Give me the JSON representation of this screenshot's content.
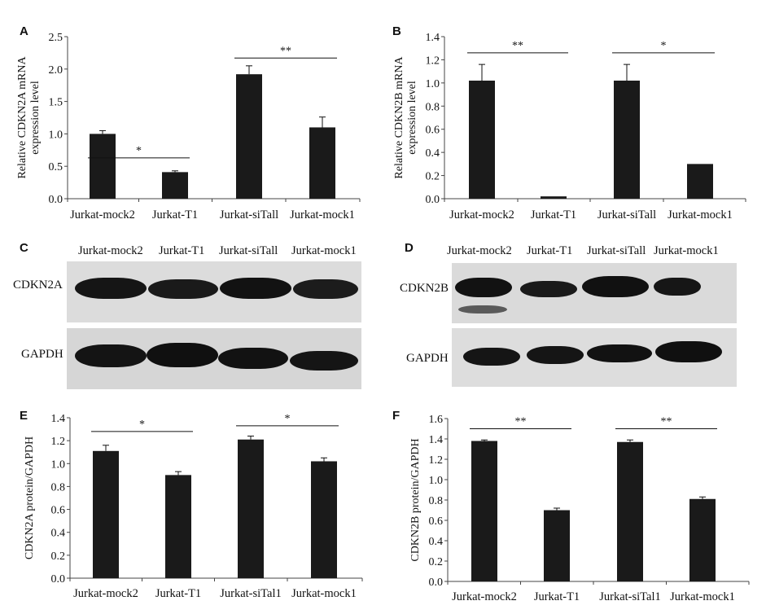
{
  "panels": {
    "A": {
      "letter": "A"
    },
    "B": {
      "letter": "B"
    },
    "C": {
      "letter": "C"
    },
    "D": {
      "letter": "D"
    },
    "E": {
      "letter": "E"
    },
    "F": {
      "letter": "F"
    }
  },
  "chart_data": [
    {
      "id": "A",
      "type": "bar",
      "categories": [
        "Jurkat-mock2",
        "Jurkat-T1",
        "Jurkat-siTall",
        "Jurkat-mock1"
      ],
      "values": [
        1.0,
        0.41,
        1.92,
        1.1
      ],
      "errors": [
        0.05,
        0.02,
        0.13,
        0.16
      ],
      "ylabel": "Relative CDKN2A mRNA expression level",
      "ylim": [
        0,
        2.5
      ],
      "yticks": [
        "0.0",
        "0.5",
        "1.0",
        "1.5",
        "2.0",
        "2.5"
      ],
      "significance": [
        {
          "from": 0,
          "to": 1,
          "label": "*",
          "level": 0.63
        },
        {
          "from": 2,
          "to": 3,
          "label": "**",
          "level": 2.17
        }
      ],
      "bar_color": "#1a1a1a"
    },
    {
      "id": "B",
      "type": "bar",
      "categories": [
        "Jurkat-mock2",
        "Jurkat-T1",
        "Jurkat-siTall",
        "Jurkat-mock1"
      ],
      "values": [
        1.02,
        0.02,
        1.02,
        0.3
      ],
      "errors": [
        0.14,
        0.0,
        0.14,
        0.0
      ],
      "ylabel": "Relative CDKN2B mRNA expression level",
      "ylim": [
        0,
        1.4
      ],
      "yticks": [
        "0.0",
        "0.2",
        "0.4",
        "0.6",
        "0.8",
        "1.0",
        "1.2",
        "1.4"
      ],
      "significance": [
        {
          "from": 0,
          "to": 1,
          "label": "**",
          "level": 1.26
        },
        {
          "from": 2,
          "to": 3,
          "label": "*",
          "level": 1.26
        }
      ],
      "bar_color": "#1a1a1a"
    },
    {
      "id": "E",
      "type": "bar",
      "categories": [
        "Jurkat-mock2",
        "Jurkat-T1",
        "Jurkat-siTal1",
        "Jurkat-mock1"
      ],
      "values": [
        1.11,
        0.9,
        1.21,
        1.02
      ],
      "errors": [
        0.05,
        0.03,
        0.03,
        0.03
      ],
      "ylabel": "CDKN2A protein/GAPDH",
      "ylim": [
        0,
        1.4
      ],
      "yticks": [
        "0.0",
        "0.2",
        "0.4",
        "0.6",
        "0.8",
        "1.0",
        "1.2",
        "1.4"
      ],
      "significance": [
        {
          "from": 0,
          "to": 1,
          "label": "*",
          "level": 1.28
        },
        {
          "from": 2,
          "to": 3,
          "label": "*",
          "level": 1.33
        }
      ],
      "bar_color": "#1a1a1a"
    },
    {
      "id": "F",
      "type": "bar",
      "categories": [
        "Jurkat-mock2",
        "Jurkat-T1",
        "Jurkat-siTal1",
        "Jurkat-mock1"
      ],
      "values": [
        1.38,
        0.7,
        1.37,
        0.81
      ],
      "errors": [
        0.01,
        0.02,
        0.02,
        0.02
      ],
      "ylabel": "CDKN2B protein/GAPDH",
      "ylim": [
        0,
        1.6
      ],
      "yticks": [
        "0.0",
        "0.2",
        "0.4",
        "0.6",
        "0.8",
        "1.0",
        "1.2",
        "1.4",
        "1.6"
      ],
      "significance": [
        {
          "from": 0,
          "to": 1,
          "label": "**",
          "level": 1.5
        },
        {
          "from": 2,
          "to": 3,
          "label": "**",
          "level": 1.5
        }
      ],
      "bar_color": "#1a1a1a"
    }
  ],
  "blots": {
    "C": {
      "lanes": [
        "Jurkat-mock2",
        "Jurkat-T1",
        "Jurkat-siTall",
        "Jurkat-mock1"
      ],
      "rows": [
        "CDKN2A",
        "GAPDH"
      ]
    },
    "D": {
      "lanes": [
        "Jurkat-mock2",
        "Jurkat-T1",
        "Jurkat-siTall",
        "Jurkat-mock1"
      ],
      "rows": [
        "CDKN2B",
        "GAPDH"
      ]
    }
  }
}
